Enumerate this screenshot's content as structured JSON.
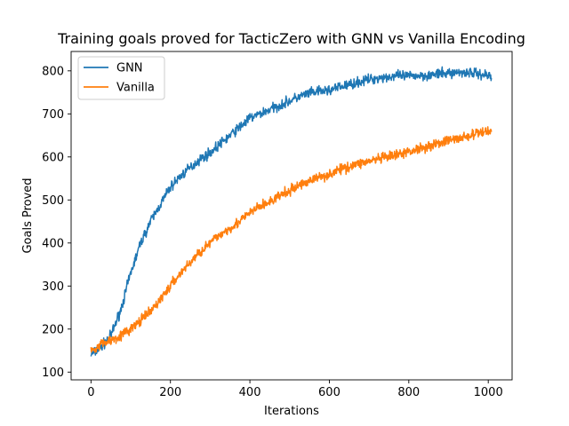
{
  "chart_data": {
    "type": "line",
    "title": "Training goals proved for TacticZero with GNN vs Vanilla Encoding",
    "xlabel": "Iterations",
    "ylabel": "Goals Proved",
    "xlim": [
      -50,
      1060
    ],
    "ylim": [
      82,
      845
    ],
    "xticks": [
      0,
      200,
      400,
      600,
      800,
      1000
    ],
    "yticks": [
      100,
      200,
      300,
      400,
      500,
      600,
      700,
      800
    ],
    "grid": false,
    "legend_position": "top-left",
    "series": [
      {
        "name": "GNN",
        "color": "#1f77b4",
        "noise": 9,
        "x": [
          0,
          25,
          50,
          75,
          100,
          125,
          150,
          175,
          200,
          225,
          250,
          275,
          300,
          325,
          350,
          375,
          400,
          425,
          450,
          475,
          500,
          525,
          550,
          575,
          600,
          625,
          650,
          675,
          700,
          725,
          750,
          775,
          800,
          825,
          850,
          875,
          900,
          925,
          950,
          975,
          1000,
          1008
        ],
        "y": [
          140,
          158,
          185,
          245,
          330,
          400,
          450,
          490,
          530,
          555,
          575,
          595,
          610,
          630,
          650,
          670,
          690,
          700,
          710,
          720,
          730,
          740,
          748,
          752,
          755,
          762,
          768,
          774,
          780,
          784,
          786,
          788,
          788,
          789,
          790,
          792,
          795,
          796,
          797,
          793,
          790,
          785
        ]
      },
      {
        "name": "Vanilla",
        "color": "#ff7f0e",
        "noise": 9,
        "x": [
          0,
          25,
          50,
          75,
          100,
          125,
          150,
          175,
          200,
          225,
          250,
          275,
          300,
          325,
          350,
          375,
          400,
          425,
          450,
          475,
          500,
          525,
          550,
          575,
          600,
          625,
          650,
          675,
          700,
          725,
          750,
          775,
          800,
          825,
          850,
          875,
          900,
          925,
          950,
          975,
          1000,
          1008
        ],
        "y": [
          150,
          165,
          175,
          185,
          200,
          220,
          240,
          270,
          300,
          330,
          355,
          380,
          400,
          420,
          435,
          450,
          470,
          485,
          495,
          510,
          520,
          535,
          545,
          553,
          560,
          570,
          578,
          585,
          590,
          595,
          600,
          605,
          612,
          620,
          625,
          632,
          638,
          643,
          648,
          655,
          660,
          660
        ]
      }
    ]
  }
}
